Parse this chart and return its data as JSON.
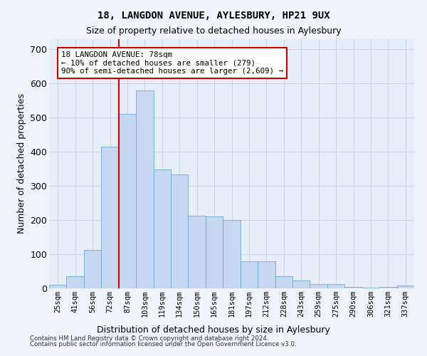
{
  "title": "18, LANGDON AVENUE, AYLESBURY, HP21 9UX",
  "subtitle": "Size of property relative to detached houses in Aylesbury",
  "xlabel": "Distribution of detached houses by size in Aylesbury",
  "ylabel": "Number of detached properties",
  "footnote1": "Contains HM Land Registry data © Crown copyright and database right 2024.",
  "footnote2": "Contains public sector information licensed under the Open Government Licence v3.0.",
  "bar_labels": [
    "25sqm",
    "41sqm",
    "56sqm",
    "72sqm",
    "87sqm",
    "103sqm",
    "119sqm",
    "134sqm",
    "150sqm",
    "165sqm",
    "181sqm",
    "197sqm",
    "212sqm",
    "228sqm",
    "243sqm",
    "259sqm",
    "275sqm",
    "290sqm",
    "306sqm",
    "321sqm",
    "337sqm"
  ],
  "bar_heights": [
    10,
    35,
    113,
    415,
    510,
    580,
    348,
    333,
    212,
    210,
    200,
    79,
    79,
    35,
    23,
    13,
    13,
    5,
    2,
    5,
    8
  ],
  "bar_color": "#c5d8f0",
  "bar_edge_color": "#6aaad4",
  "vline_color": "#cc0000",
  "vline_pos": 3.5,
  "ylim": [
    0,
    730
  ],
  "yticks": [
    0,
    100,
    200,
    300,
    400,
    500,
    600,
    700
  ],
  "ann_text_l1": "18 LANGDON AVENUE: 78sqm",
  "ann_text_l2": "← 10% of detached houses are smaller (279)",
  "ann_text_l3": "90% of semi-detached houses are larger (2,609) →",
  "ann_box_fc": "#ffffff",
  "ann_box_ec": "#cc0000",
  "bg_color": "#e8eef8",
  "grid_color": "#d0d8e8",
  "fig_bg": "#f0f4fa"
}
